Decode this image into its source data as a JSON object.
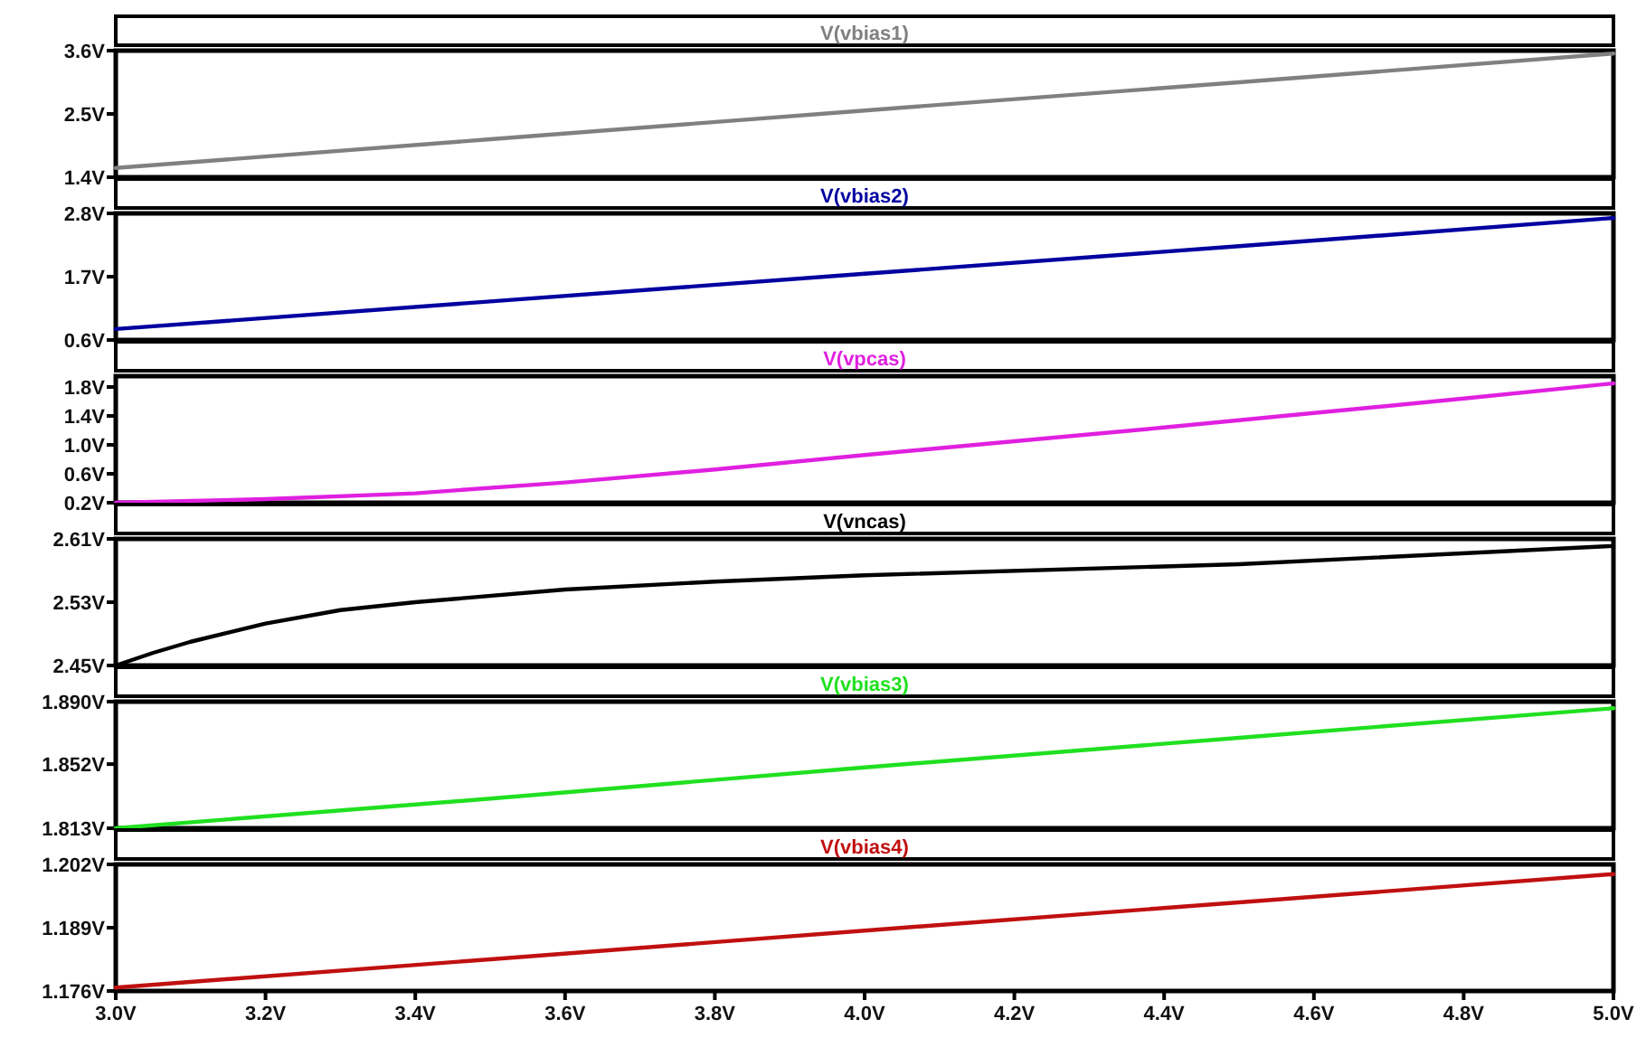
{
  "chart_data": [
    {
      "type": "line",
      "title": "V(vbias1)",
      "x": [
        3,
        3.5,
        4,
        4.5,
        5
      ],
      "series": [
        {
          "color": "#808080",
          "values": [
            1.56,
            2.06,
            2.56,
            3.05,
            3.55
          ]
        }
      ],
      "xlim": [
        3,
        5
      ],
      "ylim": [
        1.4,
        3.6
      ],
      "yticks": [
        {
          "value": 1.4,
          "label": "1.4V"
        },
        {
          "value": 2.5,
          "label": "2.5V"
        },
        {
          "value": 3.6,
          "label": "3.6V"
        }
      ],
      "tick_labels": "y"
    },
    {
      "type": "line",
      "title": "V(vbias2)",
      "x": [
        3,
        3.5,
        4,
        4.5,
        5
      ],
      "series": [
        {
          "color": "#0000a0",
          "values": [
            0.79,
            1.27,
            1.75,
            2.23,
            2.72
          ]
        }
      ],
      "xlim": [
        3,
        5
      ],
      "ylim": [
        0.6,
        2.8
      ],
      "yticks": [
        {
          "value": 0.6,
          "label": "0.6V"
        },
        {
          "value": 1.7,
          "label": "1.7V"
        },
        {
          "value": 2.8,
          "label": "2.8V"
        }
      ],
      "tick_labels": "y"
    },
    {
      "type": "line",
      "title": "V(vpcas)",
      "x": [
        3,
        3.2,
        3.4,
        3.6,
        3.8,
        4,
        4.2,
        4.4,
        4.6,
        4.8,
        5
      ],
      "series": [
        {
          "color": "#e020e0",
          "values": [
            0.2,
            0.25,
            0.33,
            0.48,
            0.66,
            0.86,
            1.05,
            1.24,
            1.44,
            1.64,
            1.85
          ]
        }
      ],
      "xlim": [
        3,
        5
      ],
      "ylim": [
        0.2,
        1.95
      ],
      "yticks": [
        {
          "value": 0.2,
          "label": "0.2V"
        },
        {
          "value": 0.6,
          "label": "0.6V"
        },
        {
          "value": 1.0,
          "label": "1.0V"
        },
        {
          "value": 1.4,
          "label": "1.4V"
        },
        {
          "value": 1.8,
          "label": "1.8V"
        }
      ],
      "tick_labels": "y"
    },
    {
      "type": "line",
      "title": "V(vncas)",
      "x": [
        3,
        3.05,
        3.1,
        3.2,
        3.3,
        3.4,
        3.6,
        3.8,
        4,
        4.5,
        5
      ],
      "series": [
        {
          "color": "#000000",
          "values": [
            2.45,
            2.466,
            2.48,
            2.503,
            2.52,
            2.53,
            2.546,
            2.556,
            2.564,
            2.578,
            2.601
          ]
        }
      ],
      "xlim": [
        3,
        5
      ],
      "ylim": [
        2.45,
        2.61
      ],
      "yticks": [
        {
          "value": 2.45,
          "label": "2.45V"
        },
        {
          "value": 2.53,
          "label": "2.53V"
        },
        {
          "value": 2.61,
          "label": "2.61V"
        }
      ],
      "tick_labels": "y"
    },
    {
      "type": "line",
      "title": "V(vbias3)",
      "x": [
        3,
        3.5,
        4,
        4.5,
        5
      ],
      "series": [
        {
          "color": "#20e020",
          "values": [
            1.813,
            1.831,
            1.85,
            1.868,
            1.886
          ]
        }
      ],
      "xlim": [
        3,
        5
      ],
      "ylim": [
        1.813,
        1.89
      ],
      "yticks": [
        {
          "value": 1.813,
          "label": "1.813V"
        },
        {
          "value": 1.852,
          "label": "1.852V"
        },
        {
          "value": 1.89,
          "label": "1.890V"
        }
      ],
      "tick_labels": "y"
    },
    {
      "type": "line",
      "title": "V(vbias4)",
      "x": [
        3,
        3.5,
        4,
        4.5,
        5
      ],
      "series": [
        {
          "color": "#c01010",
          "values": [
            1.1767,
            1.1825,
            1.1884,
            1.1942,
            1.2
          ]
        }
      ],
      "xlim": [
        3,
        5
      ],
      "ylim": [
        1.176,
        1.202
      ],
      "yticks": [
        {
          "value": 1.176,
          "label": "1.176V"
        },
        {
          "value": 1.189,
          "label": "1.189V"
        },
        {
          "value": 1.202,
          "label": "1.202V"
        }
      ],
      "xticks": [
        {
          "value": 3,
          "label": "3.0V"
        },
        {
          "value": 3.2,
          "label": "3.2V"
        },
        {
          "value": 3.4,
          "label": "3.4V"
        },
        {
          "value": 3.6,
          "label": "3.6V"
        },
        {
          "value": 3.8,
          "label": "3.8V"
        },
        {
          "value": 4,
          "label": "4.0V"
        },
        {
          "value": 4.2,
          "label": "4.2V"
        },
        {
          "value": 4.4,
          "label": "4.4V"
        },
        {
          "value": 4.6,
          "label": "4.6V"
        },
        {
          "value": 4.8,
          "label": "4.8V"
        },
        {
          "value": 5,
          "label": "5.0V"
        }
      ]
    }
  ]
}
